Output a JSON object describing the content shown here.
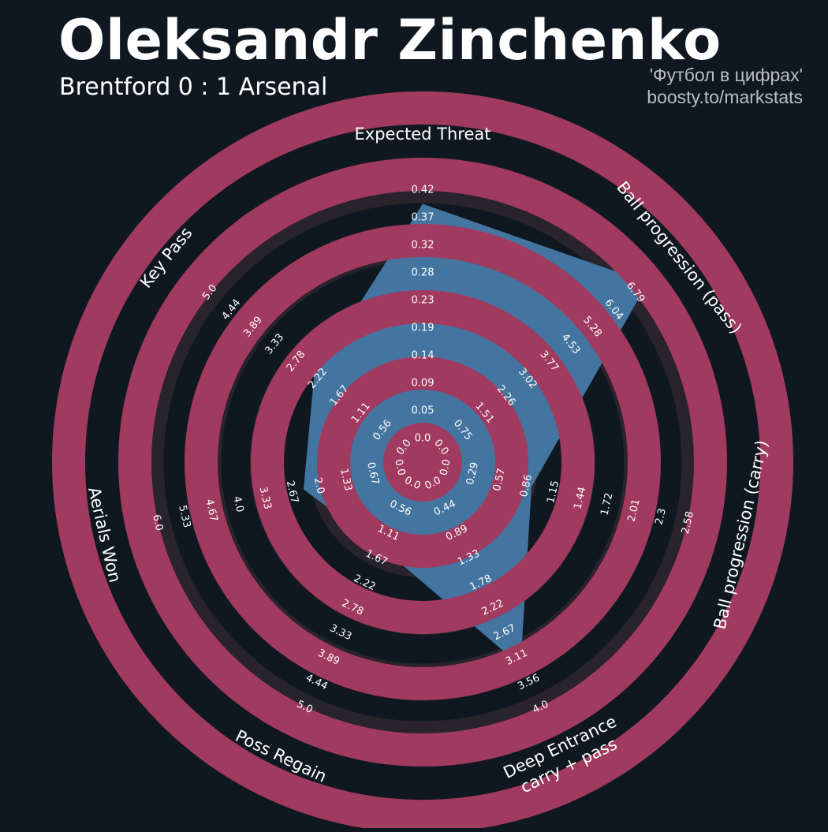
{
  "header": {
    "title": "Oleksandr Zinchenko",
    "subtitle": "Brentford 0 : 1 Arsenal",
    "credit_line1": "'Футбол в цифрах'",
    "credit_line2": "boosty.to/markstats"
  },
  "colors": {
    "background": "#0f1820",
    "ring_band": "#29232b",
    "player_fill": "#4375a0",
    "player_alt_fill": "#a13a5f",
    "text": "#ffffff"
  },
  "chart_data": {
    "type": "radar",
    "title": "Oleksandr Zinchenko",
    "axes": [
      {
        "label": "Expected Threat",
        "ticks": [
          "0.0",
          "0.05",
          "0.09",
          "0.14",
          "0.19",
          "0.23",
          "0.28",
          "0.32",
          "0.37",
          "0.42"
        ],
        "min": 0,
        "max": 0.42,
        "value": 0.37
      },
      {
        "label": "Ball progression (pass)",
        "ticks": [
          "0.0",
          "0.75",
          "1.51",
          "2.26",
          "3.02",
          "3.77",
          "4.53",
          "5.28",
          "6.04",
          "6.79"
        ],
        "min": 0,
        "max": 6.79,
        "value": 6.79
      },
      {
        "label": "Ball progression (carry)",
        "ticks": [
          "0.0",
          "0.29",
          "0.57",
          "0.86",
          "1.15",
          "1.44",
          "1.72",
          "2.01",
          "2.3",
          "2.58"
        ],
        "min": 0,
        "max": 2.58,
        "value": 0.75
      },
      {
        "label": "Deep Entrance\ncarry + pass",
        "ticks": [
          "0.0",
          "0.44",
          "0.89",
          "1.33",
          "1.78",
          "2.22",
          "2.67",
          "3.11",
          "3.56",
          "4.0"
        ],
        "min": 0,
        "max": 4.0,
        "value": 3.0
      },
      {
        "label": "Poss Regain",
        "ticks": [
          "0.0",
          "0.56",
          "1.11",
          "1.67",
          "2.22",
          "2.78",
          "3.33",
          "3.89",
          "4.44",
          "5.0"
        ],
        "min": 0,
        "max": 5.0,
        "value": 1.11
      },
      {
        "label": "Aerials Won",
        "ticks": [
          "0.0",
          "0.67",
          "1.33",
          "2.0",
          "2.67",
          "3.33",
          "4.0",
          "4.67",
          "5.33",
          "6.0"
        ],
        "min": 0,
        "max": 6.0,
        "value": 2.0
      },
      {
        "label": "Key Pass",
        "ticks": [
          "0.0",
          "0.56",
          "1.11",
          "1.67",
          "2.22",
          "2.78",
          "3.33",
          "3.89",
          "4.44",
          "5.0"
        ],
        "min": 0,
        "max": 5.0,
        "value": 2.0
      }
    ]
  }
}
